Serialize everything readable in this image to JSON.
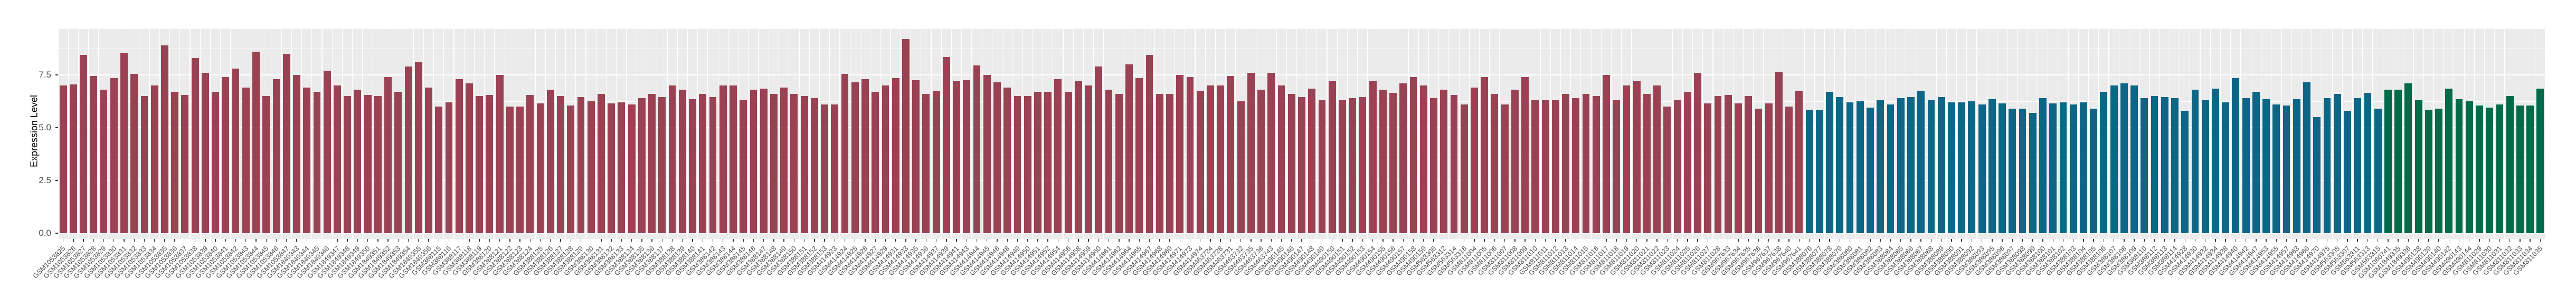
{
  "chart_data": {
    "type": "bar",
    "title": "",
    "xlabel": "",
    "ylabel": "Expression Level",
    "y_ticks": [
      "0.0",
      "2.5",
      "5.0",
      "7.5"
    ],
    "y_tick_values": [
      0,
      2.5,
      5.0,
      7.5
    ],
    "y_minor_values": [
      1.25,
      3.75,
      6.25,
      8.75
    ],
    "ylim": [
      0,
      9.7
    ],
    "grid": true,
    "legend_position": "none",
    "panel_background": "#EBEBEB",
    "gridline_color": "#FFFFFF",
    "axis_text_color": "#4D4D4D",
    "groups": [
      {
        "id": "group-1",
        "color": "#9A4253"
      },
      {
        "id": "group-2",
        "color": "#0E6687"
      },
      {
        "id": "group-3",
        "color": "#016A48"
      }
    ],
    "samples": [
      [
        "GSM1053825",
        7.0,
        0
      ],
      [
        "GSM1053826",
        7.05,
        0
      ],
      [
        "GSM1053827",
        8.45,
        0
      ],
      [
        "GSM1053828",
        7.45,
        0
      ],
      [
        "GSM1053829",
        6.8,
        0
      ],
      [
        "GSM1053830",
        7.35,
        0
      ],
      [
        "GSM1053831",
        8.55,
        0
      ],
      [
        "GSM1053832",
        7.55,
        0
      ],
      [
        "GSM1053833",
        6.5,
        0
      ],
      [
        "GSM1053834",
        7.0,
        0
      ],
      [
        "GSM1053835",
        8.9,
        0
      ],
      [
        "GSM1053836",
        6.7,
        0
      ],
      [
        "GSM1053837",
        6.55,
        0
      ],
      [
        "GSM1053838",
        8.3,
        0
      ],
      [
        "GSM1053839",
        7.6,
        0
      ],
      [
        "GSM1053840",
        6.7,
        0
      ],
      [
        "GSM1053841",
        7.4,
        0
      ],
      [
        "GSM1053842",
        7.8,
        0
      ],
      [
        "GSM1053843",
        6.9,
        0
      ],
      [
        "GSM1053844",
        8.6,
        0
      ],
      [
        "GSM1053845",
        6.5,
        0
      ],
      [
        "GSM1053846",
        7.3,
        0
      ],
      [
        "GSM1053847",
        8.5,
        0
      ],
      [
        "GSM1849343",
        7.5,
        0
      ],
      [
        "GSM1849344",
        6.9,
        0
      ],
      [
        "GSM1849345",
        6.7,
        0
      ],
      [
        "GSM1849346",
        7.7,
        0
      ],
      [
        "GSM1849347",
        7.0,
        0
      ],
      [
        "GSM1849348",
        6.5,
        0
      ],
      [
        "GSM1849349",
        6.8,
        0
      ],
      [
        "GSM1849350",
        6.55,
        0
      ],
      [
        "GSM1849351",
        6.5,
        0
      ],
      [
        "GSM1849352",
        7.4,
        0
      ],
      [
        "GSM1849353",
        6.7,
        0
      ],
      [
        "GSM1849354",
        7.9,
        0
      ],
      [
        "GSM1849355",
        8.1,
        0
      ],
      [
        "GSM1849356",
        6.9,
        0
      ],
      [
        "GSM388115",
        6.0,
        0
      ],
      [
        "GSM388116",
        6.2,
        0
      ],
      [
        "GSM388117",
        7.3,
        0
      ],
      [
        "GSM388118",
        7.1,
        0
      ],
      [
        "GSM388119",
        6.5,
        0
      ],
      [
        "GSM388120",
        6.55,
        0
      ],
      [
        "GSM388121",
        7.5,
        0
      ],
      [
        "GSM388122",
        6.0,
        0
      ],
      [
        "GSM388123",
        6.0,
        0
      ],
      [
        "GSM388124",
        6.55,
        0
      ],
      [
        "GSM388125",
        6.15,
        0
      ],
      [
        "GSM388126",
        6.8,
        0
      ],
      [
        "GSM388127",
        6.5,
        0
      ],
      [
        "GSM388128",
        6.05,
        0
      ],
      [
        "GSM388129",
        6.45,
        0
      ],
      [
        "GSM388130",
        6.25,
        0
      ],
      [
        "GSM388131",
        6.6,
        0
      ],
      [
        "GSM388132",
        6.15,
        0
      ],
      [
        "GSM388133",
        6.2,
        0
      ],
      [
        "GSM388134",
        6.1,
        0
      ],
      [
        "GSM388135",
        6.4,
        0
      ],
      [
        "GSM388136",
        6.6,
        0
      ],
      [
        "GSM388137",
        6.45,
        0
      ],
      [
        "GSM388138",
        7.0,
        0
      ],
      [
        "GSM388139",
        6.8,
        0
      ],
      [
        "GSM388140",
        6.35,
        0
      ],
      [
        "GSM388141",
        6.6,
        0
      ],
      [
        "GSM388142",
        6.45,
        0
      ],
      [
        "GSM388143",
        7.0,
        0
      ],
      [
        "GSM388144",
        7.0,
        0
      ],
      [
        "GSM388145",
        6.3,
        0
      ],
      [
        "GSM388146",
        6.8,
        0
      ],
      [
        "GSM388147",
        6.85,
        0
      ],
      [
        "GSM388148",
        6.6,
        0
      ],
      [
        "GSM388149",
        6.9,
        0
      ],
      [
        "GSM388150",
        6.6,
        0
      ],
      [
        "GSM388151",
        6.5,
        0
      ],
      [
        "GSM388152",
        6.4,
        0
      ],
      [
        "GSM388153",
        6.1,
        0
      ],
      [
        "GSM414923",
        6.1,
        0
      ],
      [
        "GSM414924",
        7.55,
        0
      ],
      [
        "GSM414925",
        7.15,
        0
      ],
      [
        "GSM414926",
        7.3,
        0
      ],
      [
        "GSM414927",
        6.7,
        0
      ],
      [
        "GSM414929",
        7.0,
        0
      ],
      [
        "GSM414931",
        7.35,
        0
      ],
      [
        "GSM414933",
        9.2,
        0
      ],
      [
        "GSM414935",
        7.25,
        0
      ],
      [
        "GSM414936",
        6.6,
        0
      ],
      [
        "GSM414937",
        6.75,
        0
      ],
      [
        "GSM414939",
        8.35,
        0
      ],
      [
        "GSM414941",
        7.2,
        0
      ],
      [
        "GSM414943",
        7.25,
        0
      ],
      [
        "GSM414944",
        7.95,
        0
      ],
      [
        "GSM414945",
        7.5,
        0
      ],
      [
        "GSM414946",
        7.15,
        0
      ],
      [
        "GSM414948",
        6.9,
        0
      ],
      [
        "GSM414949",
        6.5,
        0
      ],
      [
        "GSM414950",
        6.5,
        0
      ],
      [
        "GSM414951",
        6.7,
        0
      ],
      [
        "GSM414952",
        6.7,
        0
      ],
      [
        "GSM414954",
        7.3,
        0
      ],
      [
        "GSM414956",
        6.7,
        0
      ],
      [
        "GSM414958",
        7.2,
        0
      ],
      [
        "GSM414959",
        7.0,
        0
      ],
      [
        "GSM414960",
        7.9,
        0
      ],
      [
        "GSM414961",
        6.8,
        0
      ],
      [
        "GSM414962",
        6.6,
        0
      ],
      [
        "GSM414964",
        8.0,
        0
      ],
      [
        "GSM414965",
        7.35,
        0
      ],
      [
        "GSM414967",
        8.45,
        0
      ],
      [
        "GSM414968",
        6.6,
        0
      ],
      [
        "GSM414969",
        6.6,
        0
      ],
      [
        "GSM414971",
        7.5,
        0
      ],
      [
        "GSM414973",
        7.4,
        0
      ],
      [
        "GSM414974",
        6.75,
        0
      ],
      [
        "GSM463724",
        7.0,
        0
      ],
      [
        "GSM463728",
        7.0,
        0
      ],
      [
        "GSM463731",
        7.45,
        0
      ],
      [
        "GSM463732",
        6.25,
        0
      ],
      [
        "GSM463735",
        7.6,
        0
      ],
      [
        "GSM463736",
        6.8,
        0
      ],
      [
        "GSM463743",
        7.6,
        0
      ],
      [
        "GSM490145",
        7.0,
        0
      ],
      [
        "GSM490146",
        6.6,
        0
      ],
      [
        "GSM490147",
        6.45,
        0
      ],
      [
        "GSM490148",
        6.85,
        0
      ],
      [
        "GSM490149",
        6.3,
        0
      ],
      [
        "GSM490150",
        7.2,
        0
      ],
      [
        "GSM490151",
        6.3,
        0
      ],
      [
        "GSM490152",
        6.4,
        0
      ],
      [
        "GSM490153",
        6.45,
        0
      ],
      [
        "GSM490154",
        7.2,
        0
      ],
      [
        "GSM490155",
        6.8,
        0
      ],
      [
        "GSM490156",
        6.65,
        0
      ],
      [
        "GSM490157",
        7.1,
        0
      ],
      [
        "GSM490158",
        7.4,
        0
      ],
      [
        "GSM490159",
        7.0,
        0
      ],
      [
        "GSM563306",
        6.4,
        0
      ],
      [
        "GSM563312",
        6.8,
        0
      ],
      [
        "GSM563314",
        6.55,
        0
      ],
      [
        "GSM563316",
        6.1,
        0
      ],
      [
        "GSM811004",
        6.9,
        0
      ],
      [
        "GSM811005",
        7.4,
        0
      ],
      [
        "GSM811006",
        6.6,
        0
      ],
      [
        "GSM811007",
        6.1,
        0
      ],
      [
        "GSM811008",
        6.8,
        0
      ],
      [
        "GSM811009",
        7.4,
        0
      ],
      [
        "GSM811010",
        6.3,
        0
      ],
      [
        "GSM811011",
        6.3,
        0
      ],
      [
        "GSM811012",
        6.3,
        0
      ],
      [
        "GSM811013",
        6.6,
        0
      ],
      [
        "GSM811014",
        6.4,
        0
      ],
      [
        "GSM811015",
        6.6,
        0
      ],
      [
        "GSM811016",
        6.5,
        0
      ],
      [
        "GSM811017",
        7.5,
        0
      ],
      [
        "GSM811018",
        6.3,
        0
      ],
      [
        "GSM811019",
        7.0,
        0
      ],
      [
        "GSM811020",
        7.2,
        0
      ],
      [
        "GSM811021",
        6.6,
        0
      ],
      [
        "GSM811022",
        7.0,
        0
      ],
      [
        "GSM811023",
        6.0,
        0
      ],
      [
        "GSM811024",
        6.3,
        0
      ],
      [
        "GSM811025",
        6.7,
        0
      ],
      [
        "GSM811026",
        7.6,
        0
      ],
      [
        "GSM811027",
        6.15,
        0
      ],
      [
        "GSM811028",
        6.5,
        0
      ],
      [
        "GSM967633",
        6.55,
        0
      ],
      [
        "GSM967634",
        6.15,
        0
      ],
      [
        "GSM967635",
        6.5,
        0
      ],
      [
        "GSM967636",
        5.9,
        0
      ],
      [
        "GSM967637",
        6.15,
        0
      ],
      [
        "GSM967638",
        7.65,
        0
      ],
      [
        "GSM967640",
        6.0,
        0
      ],
      [
        "GSM967641",
        6.75,
        0
      ],
      [
        "GSM388076",
        5.85,
        1
      ],
      [
        "GSM388077",
        5.85,
        1
      ],
      [
        "GSM388078",
        6.7,
        1
      ],
      [
        "GSM388079",
        6.45,
        1
      ],
      [
        "GSM388080",
        6.2,
        1
      ],
      [
        "GSM388081",
        6.25,
        1
      ],
      [
        "GSM388082",
        5.95,
        1
      ],
      [
        "GSM388083",
        6.3,
        1
      ],
      [
        "GSM388084",
        6.1,
        1
      ],
      [
        "GSM388085",
        6.4,
        1
      ],
      [
        "GSM388086",
        6.45,
        1
      ],
      [
        "GSM388087",
        6.75,
        1
      ],
      [
        "GSM388088",
        6.3,
        1
      ],
      [
        "GSM388089",
        6.45,
        1
      ],
      [
        "GSM388090",
        6.2,
        1
      ],
      [
        "GSM388091",
        6.2,
        1
      ],
      [
        "GSM388092",
        6.25,
        1
      ],
      [
        "GSM388093",
        6.1,
        1
      ],
      [
        "GSM388095",
        6.35,
        1
      ],
      [
        "GSM388096",
        6.15,
        1
      ],
      [
        "GSM388097",
        5.9,
        1
      ],
      [
        "GSM388098",
        5.9,
        1
      ],
      [
        "GSM388099",
        5.7,
        1
      ],
      [
        "GSM388100",
        6.4,
        1
      ],
      [
        "GSM388101",
        6.15,
        1
      ],
      [
        "GSM388102",
        6.2,
        1
      ],
      [
        "GSM388103",
        6.1,
        1
      ],
      [
        "GSM388104",
        6.2,
        1
      ],
      [
        "GSM388105",
        5.9,
        1
      ],
      [
        "GSM388106",
        6.7,
        1
      ],
      [
        "GSM388107",
        7.0,
        1
      ],
      [
        "GSM388108",
        7.1,
        1
      ],
      [
        "GSM388109",
        7.0,
        1
      ],
      [
        "GSM388110",
        6.4,
        1
      ],
      [
        "GSM388112",
        6.5,
        1
      ],
      [
        "GSM388113",
        6.45,
        1
      ],
      [
        "GSM388114",
        6.4,
        1
      ],
      [
        "GSM414928",
        5.8,
        1
      ],
      [
        "GSM414930",
        6.8,
        1
      ],
      [
        "GSM414932",
        6.3,
        1
      ],
      [
        "GSM414934",
        6.85,
        1
      ],
      [
        "GSM414938",
        6.2,
        1
      ],
      [
        "GSM414940",
        7.35,
        1
      ],
      [
        "GSM414942",
        6.4,
        1
      ],
      [
        "GSM414947",
        6.7,
        1
      ],
      [
        "GSM414953",
        6.35,
        1
      ],
      [
        "GSM414955",
        6.1,
        1
      ],
      [
        "GSM414957",
        6.05,
        1
      ],
      [
        "GSM414963",
        6.35,
        1
      ],
      [
        "GSM414966",
        7.15,
        1
      ],
      [
        "GSM414970",
        5.5,
        1
      ],
      [
        "GSM414975",
        6.4,
        1
      ],
      [
        "GSM563305",
        6.6,
        1
      ],
      [
        "GSM563307",
        5.8,
        1
      ],
      [
        "GSM563311",
        6.4,
        1
      ],
      [
        "GSM563313",
        6.65,
        1
      ],
      [
        "GSM563315",
        5.9,
        1
      ],
      [
        "GSM1060741",
        6.8,
        2
      ],
      [
        "GSM1849335",
        6.8,
        2
      ],
      [
        "GSM1849336",
        7.1,
        2
      ],
      [
        "GSM490138",
        6.3,
        2
      ],
      [
        "GSM490139",
        5.85,
        2
      ],
      [
        "GSM490140",
        5.9,
        2
      ],
      [
        "GSM490142",
        6.85,
        2
      ],
      [
        "GSM490143",
        6.35,
        2
      ],
      [
        "GSM490144",
        6.25,
        2
      ],
      [
        "GSM811029",
        6.05,
        2
      ],
      [
        "GSM811030",
        5.95,
        2
      ],
      [
        "GSM811031",
        6.1,
        2
      ],
      [
        "GSM811032",
        6.5,
        2
      ],
      [
        "GSM811033",
        6.05,
        2
      ],
      [
        "GSM811034",
        6.05,
        2
      ],
      [
        "GSM811035",
        6.85,
        2
      ]
    ]
  }
}
